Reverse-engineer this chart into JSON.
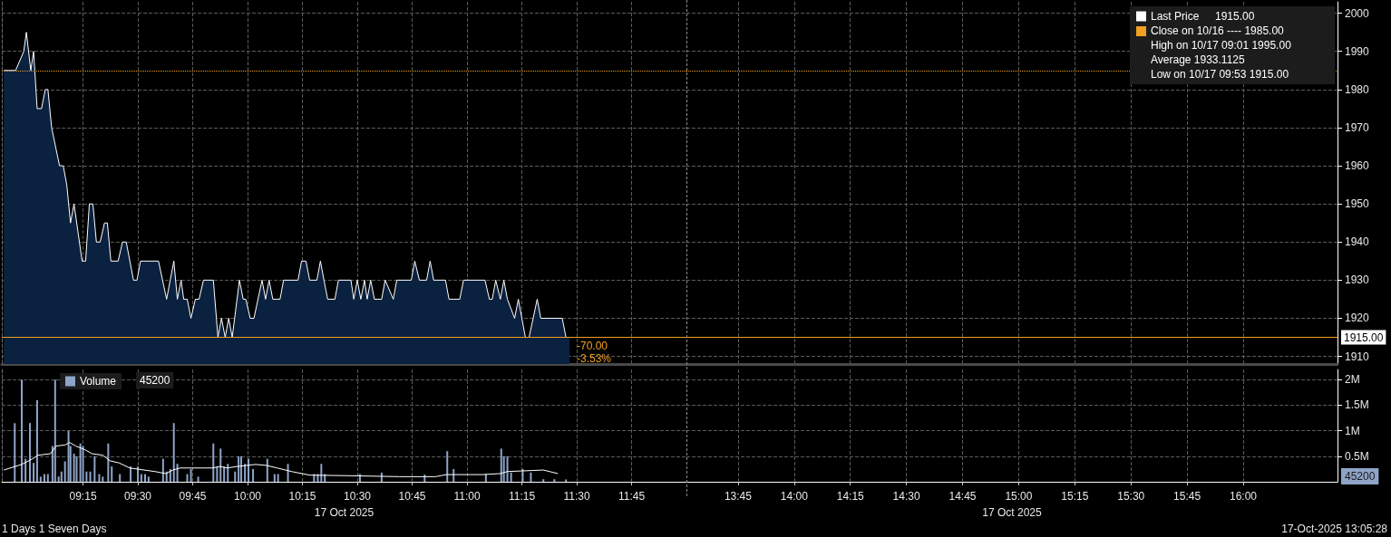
{
  "chart_data": [
    {
      "type": "area",
      "xlim": [
        8.88,
        12
      ],
      "ylim": [
        1908,
        2003
      ],
      "xticks": [
        {
          "value": 9.25,
          "label": null
        },
        {
          "value": 9.5,
          "label": null
        },
        {
          "value": 9.75,
          "label": null
        },
        {
          "value": 10,
          "label": null
        },
        {
          "value": 10.25,
          "label": null
        },
        {
          "value": 10.5,
          "label": null
        },
        {
          "value": 10.75,
          "label": null
        },
        {
          "value": 11,
          "label": null
        },
        {
          "value": 11.25,
          "label": null
        },
        {
          "value": 11.5,
          "label": null
        },
        {
          "value": 11.75,
          "label": null
        }
      ],
      "yticks": [
        1910,
        1920,
        1930,
        1940,
        1950,
        1960,
        1970,
        1980,
        1990,
        2000
      ],
      "tick_labels": false,
      "grid": true,
      "legend": "top right",
      "series": [
        {
          "name": "Last Price",
          "color": "#ffffff",
          "x": [
            8.889,
            8.943,
            8.98,
            8.992,
            9.012,
            9.025,
            9.041,
            9.061,
            9.078,
            9.09,
            9.107,
            9.143,
            9.16,
            9.176,
            9.193,
            9.209,
            9.246,
            9.262,
            9.279,
            9.295,
            9.311,
            9.328,
            9.348,
            9.361,
            9.377,
            9.41,
            9.43,
            9.447,
            9.48,
            9.496,
            9.512,
            9.594,
            9.631,
            9.664,
            9.68,
            9.697,
            9.709,
            9.725,
            9.742,
            9.762,
            9.779,
            9.799,
            9.844,
            9.865,
            9.881,
            9.898,
            9.914,
            9.93,
            9.963,
            9.98,
            9.992,
            10.012,
            10.029,
            10.066,
            10.082,
            10.098,
            10.115,
            10.148,
            10.164,
            10.23,
            10.246,
            10.266,
            10.283,
            10.316,
            10.332,
            10.348,
            10.365,
            10.398,
            10.414,
            10.471,
            10.484,
            10.5,
            10.516,
            10.533,
            10.545,
            10.561,
            10.578,
            10.611,
            10.627,
            10.664,
            10.68,
            10.746,
            10.762,
            10.783,
            10.816,
            10.832,
            10.848,
            10.902,
            10.918,
            10.967,
            10.984,
            11.082,
            11.102,
            11.115,
            11.131,
            11.152,
            11.168,
            11.184,
            11.217,
            11.234,
            11.266,
            11.283,
            11.32,
            11.336,
            11.434,
            11.451,
            11.467
          ],
          "values": [
            1985,
            1985,
            1990,
            1995,
            1985,
            1990,
            1975,
            1975,
            1980,
            1980,
            1970,
            1960,
            1960,
            1955,
            1945,
            1950,
            1935,
            1935,
            1950,
            1950,
            1940,
            1940,
            1945,
            1945,
            1935,
            1935,
            1940,
            1940,
            1930,
            1930,
            1935,
            1935,
            1925,
            1935,
            1925,
            1930,
            1925,
            1925,
            1920,
            1925,
            1925,
            1930,
            1930,
            1915,
            1920,
            1915,
            1920,
            1915,
            1930,
            1925,
            1925,
            1920,
            1920,
            1930,
            1925,
            1930,
            1925,
            1925,
            1930,
            1930,
            1935,
            1935,
            1930,
            1930,
            1935,
            1930,
            1925,
            1925,
            1930,
            1930,
            1925,
            1930,
            1925,
            1930,
            1925,
            1930,
            1925,
            1925,
            1930,
            1925,
            1930,
            1930,
            1935,
            1930,
            1930,
            1935,
            1930,
            1930,
            1925,
            1925,
            1930,
            1930,
            1925,
            1925,
            1930,
            1925,
            1930,
            1925,
            1920,
            1925,
            1915,
            1915,
            1925,
            1920,
            1920,
            1915,
            1915
          ]
        }
      ],
      "ref_lines": [
        {
          "axis": "y",
          "value": 1985,
          "color": "#f0a020",
          "line_style": "dotted"
        },
        {
          "axis": "y",
          "value": 1915,
          "color": "#f0a020",
          "line_style": "solid"
        }
      ],
      "annotations": [
        "1915.00",
        "Close on 10/16 ---- 1985.00",
        "High on 10/17 09:01 1995.00",
        "Average 1933.1125",
        "Low on 10/17 09:53 1915.00",
        {
          "text": "-70.00",
          "x": 11.467,
          "y": 1915
        },
        {
          "text": "-3.53%",
          "x": 11.467,
          "y": 1915
        }
      ]
    },
    {
      "type": "area",
      "xlim": [
        13.52,
        16.42
      ],
      "ylim": [
        1908,
        2003
      ],
      "xticks": [
        {
          "value": 13.75,
          "label": null
        },
        {
          "value": 14,
          "label": null
        },
        {
          "value": 14.25,
          "label": null
        },
        {
          "value": 14.5,
          "label": null
        },
        {
          "value": 14.75,
          "label": null
        },
        {
          "value": 15,
          "label": null
        },
        {
          "value": 15.25,
          "label": null
        },
        {
          "value": 15.5,
          "label": null
        },
        {
          "value": 15.75,
          "label": null
        },
        {
          "value": 16,
          "label": null
        }
      ],
      "yticks": [
        1910,
        1920,
        1930,
        1940,
        1950,
        1960,
        1970,
        1980,
        1990,
        2000
      ],
      "tick_labels": "y",
      "grid": true,
      "ref_lines": [
        {
          "axis": "y",
          "value": 1985,
          "color": "#f0a020",
          "line_style": "dotted"
        },
        {
          "axis": "y",
          "value": 1915,
          "label": "1915.00",
          "color": "#f0a020",
          "line_style": "solid"
        }
      ]
    },
    {
      "type": "bar",
      "xlim": [
        8.88,
        12
      ],
      "ylim": [
        0,
        2200000
      ],
      "xlabel": "17 Oct 2025",
      "xticks": [
        {
          "value": 9.25,
          "label": "09:15"
        },
        {
          "value": 9.5,
          "label": "09:30"
        },
        {
          "value": 9.75,
          "label": "09:45"
        },
        {
          "value": 10,
          "label": "10:00"
        },
        {
          "value": 10.25,
          "label": "10:15"
        },
        {
          "value": 10.5,
          "label": "10:30"
        },
        {
          "value": 10.75,
          "label": "10:45"
        },
        {
          "value": 11,
          "label": "11:00"
        },
        {
          "value": 11.25,
          "label": "11:15"
        },
        {
          "value": 11.5,
          "label": "11:30"
        },
        {
          "value": 11.75,
          "label": "11:45"
        }
      ],
      "yticks": [
        {
          "value": 500000,
          "label": null
        },
        {
          "value": 1000000,
          "label": null
        },
        {
          "value": 1500000,
          "label": null
        },
        {
          "value": 2000000,
          "label": null
        }
      ],
      "tick_labels": "x",
      "grid": true,
      "legend": "top left",
      "series": [
        {
          "name": "Volume",
          "color": "#8ea4c8",
          "x": [
            8.939,
            8.971,
            8.988,
            9.008,
            9.025,
            9.041,
            9.057,
            9.074,
            9.09,
            9.111,
            9.123,
            9.139,
            9.152,
            9.168,
            9.184,
            9.193,
            9.209,
            9.221,
            9.238,
            9.25,
            9.266,
            9.283,
            9.303,
            9.324,
            9.34,
            9.365,
            9.381,
            9.418,
            9.467,
            9.5,
            9.516,
            9.533,
            9.549,
            9.615,
            9.631,
            9.648,
            9.664,
            9.68,
            9.725,
            9.742,
            9.775,
            9.844,
            9.861,
            9.877,
            9.893,
            9.91,
            9.943,
            9.959,
            9.971,
            9.988,
            10.004,
            10.025,
            10.09,
            10.123,
            10.139,
            10.184,
            10.303,
            10.32,
            10.336,
            10.352,
            10.512,
            10.611,
            10.807,
            10.91,
            10.939,
            11.086,
            11.156,
            11.168,
            11.184,
            11.201,
            11.254,
            11.291,
            11.348,
            11.398,
            11.451
          ],
          "values": [
            1150000,
            2000000,
            450000,
            1150000,
            370000,
            1600000,
            100000,
            150000,
            150000,
            700000,
            2000000,
            100000,
            200000,
            400000,
            1000000,
            700000,
            550000,
            500000,
            750000,
            700000,
            200000,
            200000,
            500000,
            150000,
            100000,
            750000,
            300000,
            150000,
            300000,
            300000,
            150000,
            150000,
            100000,
            450000,
            200000,
            250000,
            1150000,
            350000,
            150000,
            250000,
            100000,
            750000,
            300000,
            650000,
            300000,
            350000,
            200000,
            500000,
            500000,
            350000,
            450000,
            250000,
            450000,
            150000,
            150000,
            350000,
            150000,
            150000,
            350000,
            150000,
            150000,
            180000,
            140000,
            600000,
            250000,
            150000,
            650000,
            500000,
            500000,
            180000,
            250000,
            180000,
            50000,
            50000,
            45200
          ]
        },
        {
          "type": "line",
          "color": "#ffffff",
          "x": [
            8.889,
            8.971,
            9.02,
            9.045,
            9.102,
            9.127,
            9.168,
            9.189,
            9.217,
            9.258,
            9.291,
            9.34,
            9.373,
            9.414,
            9.463,
            9.578,
            9.627,
            9.66,
            9.693,
            9.84,
            9.873,
            9.906,
            9.955,
            10.037,
            10.086,
            10.135,
            10.201,
            10.283,
            10.447,
            10.693,
            10.857,
            10.906,
            11.07,
            11.152,
            11.184,
            11.348,
            11.414
          ],
          "values": [
            230000,
            340000,
            450000,
            520000,
            550000,
            700000,
            720000,
            770000,
            700000,
            630000,
            550000,
            520000,
            410000,
            370000,
            270000,
            200000,
            160000,
            230000,
            270000,
            270000,
            300000,
            270000,
            300000,
            340000,
            320000,
            270000,
            200000,
            130000,
            120000,
            100000,
            100000,
            140000,
            140000,
            160000,
            200000,
            230000,
            160000
          ]
        }
      ],
      "annotations": [
        "45200",
        "1 Days 1 Seven Days"
      ]
    },
    {
      "type": "bar",
      "xlim": [
        13.52,
        16.42
      ],
      "ylim": [
        0,
        2200000
      ],
      "xlabel": "17 Oct 2025",
      "xticks": [
        {
          "value": 13.75,
          "label": "13:45"
        },
        {
          "value": 14,
          "label": "14:00"
        },
        {
          "value": 14.25,
          "label": "14:15"
        },
        {
          "value": 14.5,
          "label": "14:30"
        },
        {
          "value": 14.75,
          "label": "14:45"
        },
        {
          "value": 15,
          "label": "15:00"
        },
        {
          "value": 15.25,
          "label": "15:15"
        },
        {
          "value": 15.5,
          "label": "15:30"
        },
        {
          "value": 15.75,
          "label": "15:45"
        },
        {
          "value": 16,
          "label": "16:00"
        }
      ],
      "yticks": [
        {
          "value": 500000,
          "label": "0.5M"
        },
        {
          "value": 1000000,
          "label": "1M"
        },
        {
          "value": 1500000,
          "label": "1.5M"
        },
        {
          "value": 2000000,
          "label": "2M"
        }
      ],
      "grid": true,
      "annotations": [
        "45200",
        "17-Oct-2025 13:05:28"
      ]
    }
  ]
}
